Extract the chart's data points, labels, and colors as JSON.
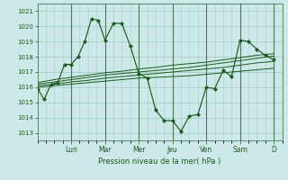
{
  "background_color": "#cce8e8",
  "grid_color": "#aacccc",
  "line_color": "#1a5c1a",
  "marker_color": "#1a5c1a",
  "xlabel": "Pression niveau de la mer( hPa )",
  "ylim": [
    1012.5,
    1021.5
  ],
  "yticks": [
    1013,
    1014,
    1015,
    1016,
    1017,
    1018,
    1019,
    1020,
    1021
  ],
  "day_labels": [
    "Lun",
    "Mar",
    "Mer",
    "Jeu",
    "Ven",
    "Sam",
    "D"
  ],
  "day_positions": [
    2,
    4,
    6,
    8,
    10,
    12,
    14
  ],
  "xlim": [
    0,
    14.5
  ],
  "series": [
    {
      "x": [
        0.0,
        0.4,
        0.8,
        1.2,
        1.6,
        2.0,
        2.4,
        2.8,
        3.2,
        3.6,
        4.0,
        4.5,
        5.0,
        5.5,
        6.0,
        6.5,
        7.0,
        7.5,
        8.0,
        8.5,
        9.0,
        9.5,
        10.0,
        10.5,
        11.0,
        11.5,
        12.0,
        12.5,
        13.0,
        13.5,
        14.0
      ],
      "y": [
        1015.9,
        1015.2,
        1016.2,
        1016.3,
        1017.5,
        1017.5,
        1018.0,
        1019.0,
        1020.5,
        1020.4,
        1019.1,
        1020.2,
        1020.2,
        1018.7,
        1016.9,
        1016.6,
        1014.5,
        1013.8,
        1013.8,
        1013.1,
        1014.1,
        1014.2,
        1016.0,
        1015.9,
        1017.1,
        1016.7,
        1019.1,
        1019.0,
        1018.5,
        1018.1,
        1017.8
      ],
      "has_markers": true
    },
    {
      "x": [
        0.0,
        1.0,
        2.0,
        3.0,
        4.0,
        5.0,
        6.0,
        7.0,
        8.0,
        9.0,
        10.0,
        11.0,
        12.0,
        13.0,
        14.0
      ],
      "y": [
        1016.0,
        1016.1,
        1016.2,
        1016.3,
        1016.4,
        1016.5,
        1016.6,
        1016.65,
        1016.7,
        1016.75,
        1016.85,
        1016.95,
        1017.05,
        1017.15,
        1017.25
      ],
      "has_markers": false
    },
    {
      "x": [
        0.0,
        1.0,
        2.0,
        3.0,
        4.0,
        5.0,
        6.0,
        7.0,
        8.0,
        9.0,
        10.0,
        11.0,
        12.0,
        13.0,
        14.0
      ],
      "y": [
        1016.1,
        1016.2,
        1016.35,
        1016.45,
        1016.6,
        1016.7,
        1016.8,
        1016.9,
        1017.0,
        1017.1,
        1017.2,
        1017.3,
        1017.45,
        1017.6,
        1017.7
      ],
      "has_markers": false
    },
    {
      "x": [
        0.0,
        1.0,
        2.0,
        3.0,
        4.0,
        5.0,
        6.0,
        7.0,
        8.0,
        9.0,
        10.0,
        11.0,
        12.0,
        13.0,
        14.0
      ],
      "y": [
        1016.2,
        1016.35,
        1016.5,
        1016.65,
        1016.8,
        1016.9,
        1017.0,
        1017.1,
        1017.2,
        1017.3,
        1017.45,
        1017.6,
        1017.75,
        1017.9,
        1018.05
      ],
      "has_markers": false
    },
    {
      "x": [
        0.0,
        1.0,
        2.0,
        3.0,
        4.0,
        5.0,
        6.0,
        7.0,
        8.0,
        9.0,
        10.0,
        11.0,
        12.0,
        13.0,
        14.0
      ],
      "y": [
        1016.3,
        1016.5,
        1016.65,
        1016.8,
        1016.95,
        1017.05,
        1017.2,
        1017.3,
        1017.45,
        1017.55,
        1017.65,
        1017.8,
        1017.95,
        1018.1,
        1018.2
      ],
      "has_markers": false
    }
  ]
}
